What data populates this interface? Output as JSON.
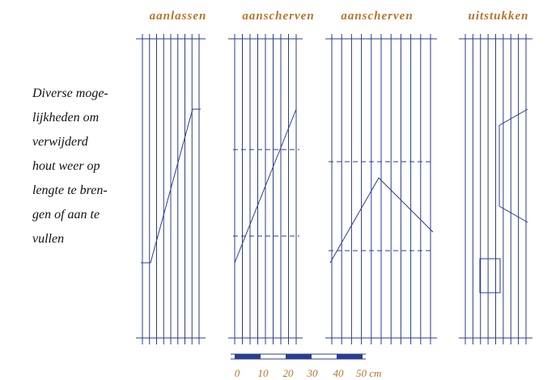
{
  "headings": [
    "aanlassen",
    "aanscherven",
    "aanscherven",
    "uitstukken"
  ],
  "caption": [
    "Diverse moge-",
    "lijkheden om",
    "verwijderd",
    "hout weer op",
    "lengte te bren-",
    "gen of aan te",
    "vullen"
  ],
  "scale_labels": [
    "0",
    "10",
    "20",
    "30",
    "40",
    "50 cm"
  ]
}
